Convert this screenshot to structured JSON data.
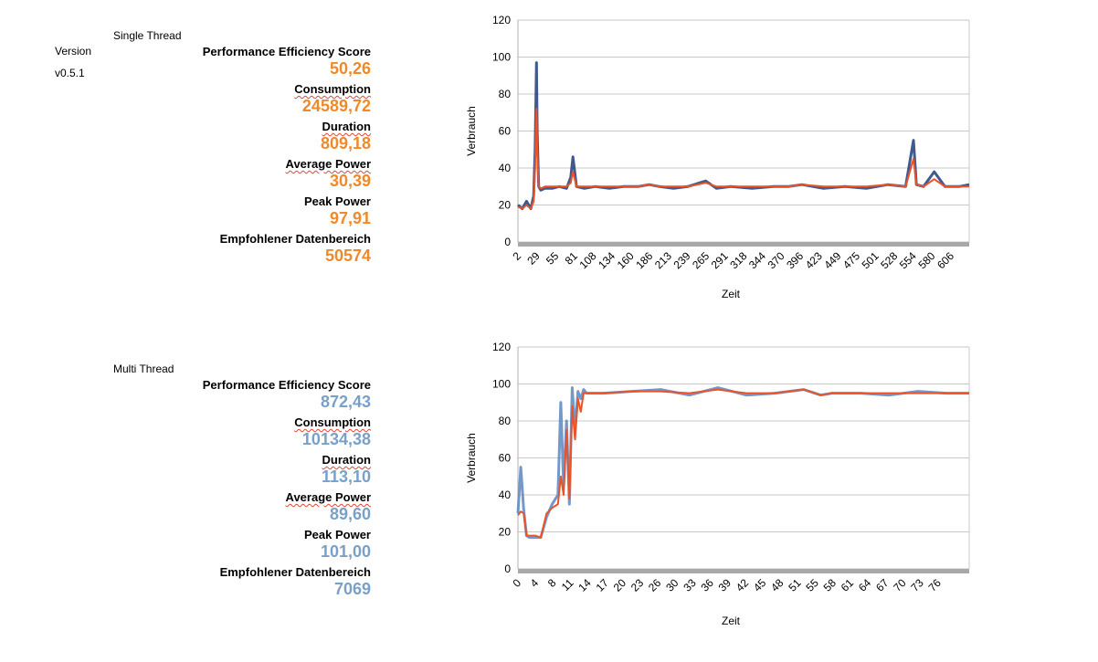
{
  "version_label": "Version",
  "version_value": "v0.5.1",
  "single": {
    "heading": "Single Thread",
    "metrics": [
      {
        "label": "Performance Efficiency Score",
        "value": "50,26"
      },
      {
        "label": "Consumption",
        "value": "24589,72"
      },
      {
        "label": "Duration",
        "value": "809,18"
      },
      {
        "label": "Average Power",
        "value": "30,39"
      },
      {
        "label": "Peak Power",
        "value": "97,91"
      },
      {
        "label": "Empfohlener Datenbereich",
        "value": "50574"
      }
    ],
    "value_color": "#ee8a2a"
  },
  "multi": {
    "heading": "Multi Thread",
    "metrics": [
      {
        "label": "Performance Efficiency Score",
        "value": "872,43"
      },
      {
        "label": "Consumption",
        "value": "10134,38"
      },
      {
        "label": "Duration",
        "value": "113,10"
      },
      {
        "label": "Average Power",
        "value": "89,60"
      },
      {
        "label": "Peak Power",
        "value": "101,00"
      },
      {
        "label": "Empfohlener Datenbereich",
        "value": "7069"
      }
    ],
    "value_color": "#7aa0c8"
  },
  "chart_data": [
    {
      "type": "line",
      "title": "",
      "xlabel": "Zeit",
      "ylabel": "Verbrauch",
      "ylim": [
        0,
        120
      ],
      "yticks": [
        0,
        20,
        40,
        60,
        80,
        100,
        120
      ],
      "xlim": [
        2,
        634
      ],
      "xtick_labels": [
        "2",
        "29",
        "55",
        "81",
        "108",
        "134",
        "160",
        "186",
        "213",
        "239",
        "265",
        "291",
        "318",
        "344",
        "370",
        "396",
        "423",
        "449",
        "475",
        "501",
        "528",
        "554",
        "580",
        "606"
      ],
      "grid": true,
      "series": [
        {
          "color": "#1f3d7a",
          "x": [
            2,
            8,
            14,
            20,
            24,
            26,
            28,
            29,
            31,
            34,
            40,
            50,
            60,
            70,
            76,
            79,
            84,
            95,
            110,
            130,
            150,
            170,
            186,
            200,
            220,
            240,
            265,
            280,
            300,
            330,
            360,
            380,
            400,
            430,
            460,
            490,
            520,
            545,
            556,
            560,
            570,
            585,
            600,
            620,
            634
          ],
          "y": [
            20,
            18,
            22,
            18,
            25,
            50,
            97,
            60,
            30,
            28,
            29,
            29,
            30,
            29,
            35,
            46,
            30,
            29,
            30,
            29,
            30,
            30,
            31,
            30,
            29,
            30,
            33,
            29,
            30,
            29,
            30,
            30,
            31,
            29,
            30,
            29,
            31,
            30,
            55,
            31,
            30,
            38,
            30,
            30,
            31
          ]
        },
        {
          "color": "#e8532a",
          "x": [
            2,
            8,
            14,
            20,
            24,
            26,
            28,
            29,
            31,
            34,
            40,
            50,
            60,
            70,
            76,
            79,
            84,
            95,
            110,
            130,
            150,
            170,
            186,
            200,
            220,
            240,
            265,
            280,
            300,
            330,
            360,
            380,
            400,
            430,
            460,
            490,
            520,
            545,
            556,
            560,
            570,
            585,
            600,
            620,
            634
          ],
          "y": [
            19,
            18,
            20,
            18,
            22,
            40,
            72,
            50,
            30,
            29,
            30,
            30,
            30,
            30,
            32,
            38,
            30,
            30,
            30,
            30,
            30,
            30,
            31,
            30,
            30,
            30,
            32,
            30,
            30,
            30,
            30,
            30,
            31,
            30,
            30,
            30,
            31,
            30,
            45,
            31,
            30,
            34,
            30,
            30,
            30
          ]
        }
      ]
    },
    {
      "type": "line",
      "title": "",
      "xlabel": "Zeit",
      "ylabel": "Verbrauch",
      "ylim": [
        0,
        120
      ],
      "yticks": [
        0,
        20,
        40,
        60,
        80,
        100,
        120
      ],
      "xlim": [
        0,
        79
      ],
      "xtick_labels": [
        "0",
        "4",
        "8",
        "11",
        "14",
        "17",
        "20",
        "23",
        "26",
        "30",
        "33",
        "36",
        "39",
        "42",
        "45",
        "48",
        "51",
        "55",
        "58",
        "61",
        "64",
        "67",
        "70",
        "73",
        "76"
      ],
      "grid": true,
      "series": [
        {
          "color": "#5b86c0",
          "x": [
            0,
            0.5,
            1,
            1.5,
            2,
            3,
            4,
            5,
            6,
            7,
            7.5,
            8,
            8.5,
            9,
            9.5,
            10,
            10.5,
            11,
            11.5,
            12,
            15,
            20,
            25,
            30,
            35,
            40,
            45,
            50,
            53,
            55,
            60,
            65,
            70,
            75,
            79
          ],
          "y": [
            30,
            55,
            32,
            18,
            17,
            17,
            17,
            28,
            35,
            40,
            90,
            45,
            80,
            35,
            98,
            75,
            96,
            92,
            97,
            95,
            95,
            96,
            97,
            94,
            98,
            94,
            95,
            97,
            94,
            95,
            95,
            94,
            96,
            95,
            95
          ]
        },
        {
          "color": "#e8532a",
          "x": [
            0,
            0.5,
            1,
            1.5,
            2,
            3,
            4,
            5,
            6,
            7,
            7.5,
            8,
            8.5,
            9,
            9.5,
            10,
            10.5,
            11,
            11.5,
            12,
            15,
            20,
            25,
            30,
            35,
            40,
            45,
            50,
            53,
            55,
            60,
            65,
            70,
            75,
            79
          ],
          "y": [
            29,
            31,
            30,
            18,
            18,
            18,
            17,
            30,
            33,
            35,
            50,
            40,
            75,
            38,
            88,
            70,
            92,
            85,
            95,
            95,
            95,
            96,
            96,
            95,
            97,
            95,
            95,
            97,
            94,
            95,
            95,
            95,
            95,
            95,
            95
          ]
        }
      ]
    }
  ]
}
